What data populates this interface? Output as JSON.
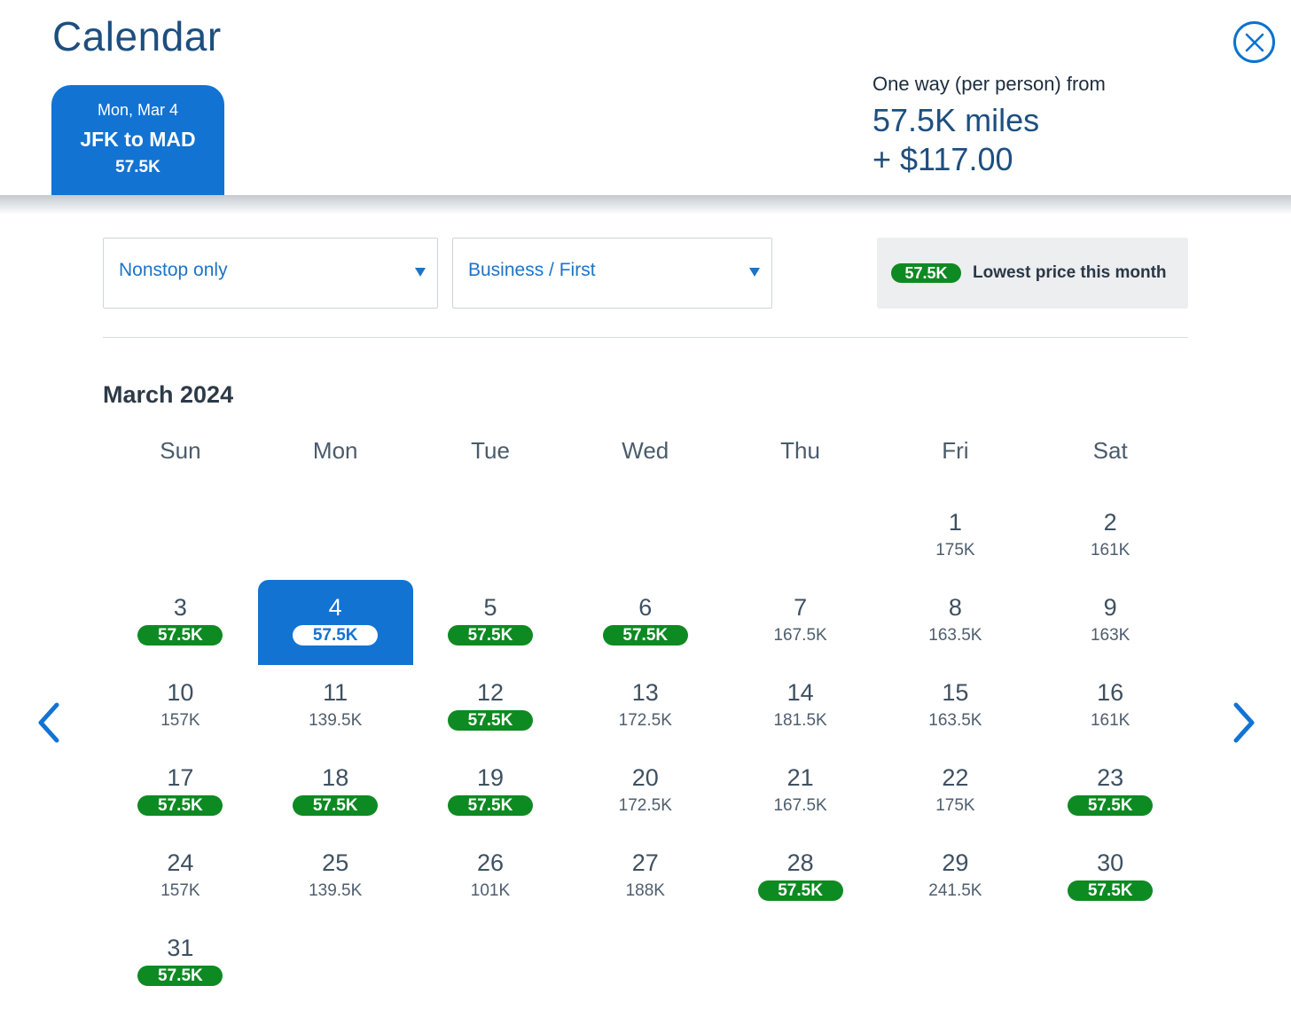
{
  "header": {
    "title": "Calendar",
    "close_icon": "close-icon"
  },
  "trip_tab": {
    "date": "Mon, Mar 4",
    "route": "JFK to MAD",
    "price": "57.5K"
  },
  "fare_summary": {
    "label": "One way (per person) from",
    "miles": "57.5K miles",
    "taxes": "+ $117.00"
  },
  "filters": {
    "stops": {
      "value": "Nonstop only"
    },
    "cabin": {
      "value": "Business / First"
    }
  },
  "legend": {
    "pill": "57.5K",
    "text": "Lowest price this month"
  },
  "colors": {
    "accent": "#1273d3",
    "lowest_price": "#0e8a22",
    "title": "#1d4f7f"
  },
  "calendar": {
    "month": "March 2024",
    "weekdays": [
      "Sun",
      "Mon",
      "Tue",
      "Wed",
      "Thu",
      "Fri",
      "Sat"
    ],
    "leading_blanks": 5,
    "selected_day": "4",
    "days": [
      {
        "day": "1",
        "price": "175K",
        "lowest": false
      },
      {
        "day": "2",
        "price": "161K",
        "lowest": false
      },
      {
        "day": "3",
        "price": "57.5K",
        "lowest": true
      },
      {
        "day": "4",
        "price": "57.5K",
        "lowest": true
      },
      {
        "day": "5",
        "price": "57.5K",
        "lowest": true
      },
      {
        "day": "6",
        "price": "57.5K",
        "lowest": true
      },
      {
        "day": "7",
        "price": "167.5K",
        "lowest": false
      },
      {
        "day": "8",
        "price": "163.5K",
        "lowest": false
      },
      {
        "day": "9",
        "price": "163K",
        "lowest": false
      },
      {
        "day": "10",
        "price": "157K",
        "lowest": false
      },
      {
        "day": "11",
        "price": "139.5K",
        "lowest": false
      },
      {
        "day": "12",
        "price": "57.5K",
        "lowest": true
      },
      {
        "day": "13",
        "price": "172.5K",
        "lowest": false
      },
      {
        "day": "14",
        "price": "181.5K",
        "lowest": false
      },
      {
        "day": "15",
        "price": "163.5K",
        "lowest": false
      },
      {
        "day": "16",
        "price": "161K",
        "lowest": false
      },
      {
        "day": "17",
        "price": "57.5K",
        "lowest": true
      },
      {
        "day": "18",
        "price": "57.5K",
        "lowest": true
      },
      {
        "day": "19",
        "price": "57.5K",
        "lowest": true
      },
      {
        "day": "20",
        "price": "172.5K",
        "lowest": false
      },
      {
        "day": "21",
        "price": "167.5K",
        "lowest": false
      },
      {
        "day": "22",
        "price": "175K",
        "lowest": false
      },
      {
        "day": "23",
        "price": "57.5K",
        "lowest": true
      },
      {
        "day": "24",
        "price": "157K",
        "lowest": false
      },
      {
        "day": "25",
        "price": "139.5K",
        "lowest": false
      },
      {
        "day": "26",
        "price": "101K",
        "lowest": false
      },
      {
        "day": "27",
        "price": "188K",
        "lowest": false
      },
      {
        "day": "28",
        "price": "57.5K",
        "lowest": true
      },
      {
        "day": "29",
        "price": "241.5K",
        "lowest": false
      },
      {
        "day": "30",
        "price": "57.5K",
        "lowest": true
      },
      {
        "day": "31",
        "price": "57.5K",
        "lowest": true
      }
    ]
  },
  "navigation": {
    "prev_icon": "chevron-left-icon",
    "next_icon": "chevron-right-icon"
  }
}
